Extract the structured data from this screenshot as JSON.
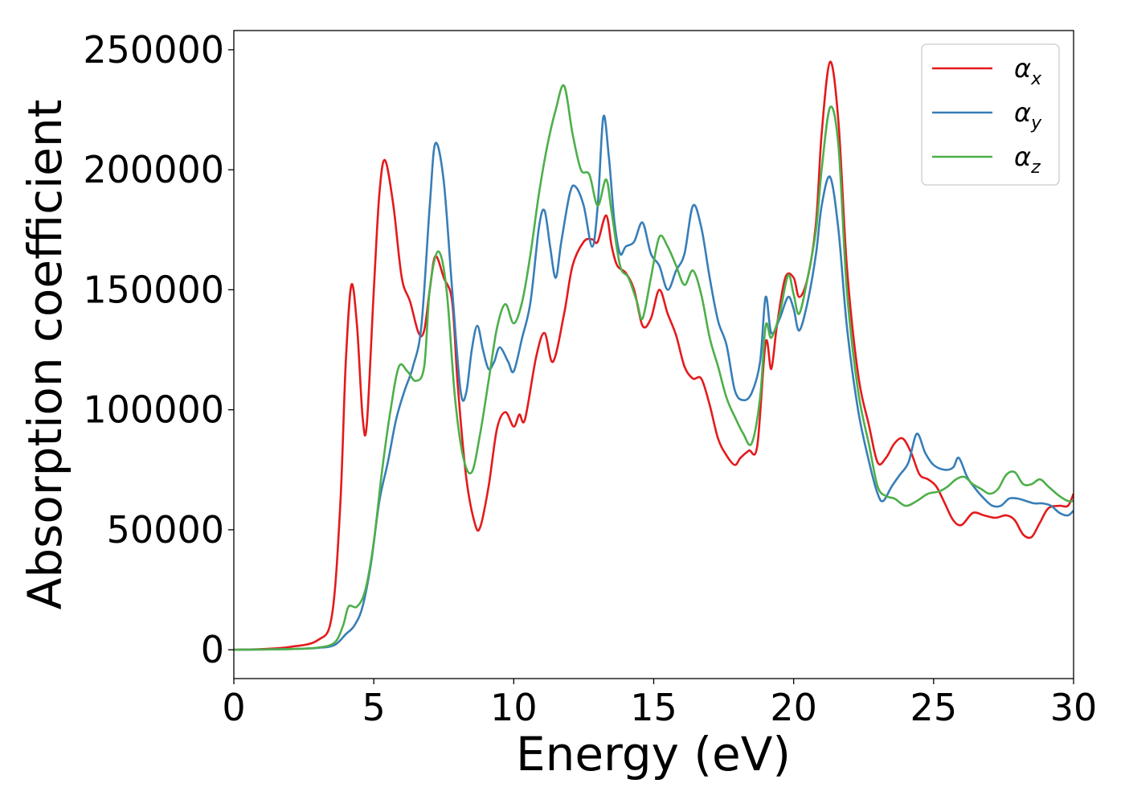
{
  "chart_data": {
    "type": "line",
    "title": "",
    "xlabel": "Energy (eV)",
    "ylabel": "Absorption coefficient",
    "xlim": [
      0,
      30
    ],
    "ylim": [
      -12000,
      258000
    ],
    "xticks": [
      0,
      5,
      10,
      15,
      20,
      25,
      30
    ],
    "xtick_labels": [
      "0",
      "5",
      "10",
      "15",
      "20",
      "25",
      "30"
    ],
    "yticks": [
      0,
      50000,
      100000,
      150000,
      200000,
      250000
    ],
    "ytick_labels": [
      "0",
      "50000",
      "100000",
      "150000",
      "200000",
      "250000"
    ],
    "grid": false,
    "legend_position": "top-right",
    "series": [
      {
        "name": "α",
        "subscript": "x",
        "color": "#e41a1c",
        "points": [
          [
            0,
            0
          ],
          [
            1,
            300
          ],
          [
            2,
            1200
          ],
          [
            3,
            4000
          ],
          [
            3.5,
            14000
          ],
          [
            3.8,
            60000
          ],
          [
            4.0,
            120000
          ],
          [
            4.2,
            152000
          ],
          [
            4.4,
            135000
          ],
          [
            4.6,
            97000
          ],
          [
            4.75,
            94000
          ],
          [
            5.0,
            150000
          ],
          [
            5.2,
            190000
          ],
          [
            5.4,
            204000
          ],
          [
            5.7,
            185000
          ],
          [
            6.0,
            155000
          ],
          [
            6.3,
            145000
          ],
          [
            6.6,
            132000
          ],
          [
            6.8,
            133000
          ],
          [
            7.0,
            150000
          ],
          [
            7.2,
            164000
          ],
          [
            7.5,
            155000
          ],
          [
            7.8,
            145000
          ],
          [
            8.0,
            110000
          ],
          [
            8.3,
            72000
          ],
          [
            8.6,
            53000
          ],
          [
            8.8,
            51000
          ],
          [
            9.1,
            68000
          ],
          [
            9.4,
            92000
          ],
          [
            9.7,
            99000
          ],
          [
            10.0,
            93000
          ],
          [
            10.2,
            98000
          ],
          [
            10.4,
            96000
          ],
          [
            10.8,
            122000
          ],
          [
            11.1,
            132000
          ],
          [
            11.4,
            120000
          ],
          [
            11.8,
            140000
          ],
          [
            12.1,
            160000
          ],
          [
            12.5,
            170000
          ],
          [
            12.8,
            171000
          ],
          [
            13.0,
            170000
          ],
          [
            13.3,
            181000
          ],
          [
            13.5,
            168000
          ],
          [
            13.7,
            160000
          ],
          [
            14.0,
            157000
          ],
          [
            14.3,
            150000
          ],
          [
            14.6,
            135000
          ],
          [
            14.9,
            138000
          ],
          [
            15.2,
            150000
          ],
          [
            15.5,
            140000
          ],
          [
            15.8,
            131000
          ],
          [
            16.1,
            118000
          ],
          [
            16.4,
            113000
          ],
          [
            16.7,
            113000
          ],
          [
            17.0,
            102000
          ],
          [
            17.3,
            88000
          ],
          [
            17.6,
            81000
          ],
          [
            17.9,
            77000
          ],
          [
            18.1,
            80000
          ],
          [
            18.4,
            83000
          ],
          [
            18.7,
            85000
          ],
          [
            19.0,
            128000
          ],
          [
            19.2,
            117000
          ],
          [
            19.4,
            135000
          ],
          [
            19.7,
            155000
          ],
          [
            20.0,
            155000
          ],
          [
            20.2,
            147000
          ],
          [
            20.5,
            155000
          ],
          [
            20.8,
            178000
          ],
          [
            21.0,
            215000
          ],
          [
            21.3,
            245000
          ],
          [
            21.6,
            220000
          ],
          [
            21.9,
            160000
          ],
          [
            22.3,
            115000
          ],
          [
            22.7,
            93000
          ],
          [
            23.0,
            78000
          ],
          [
            23.3,
            80000
          ],
          [
            23.6,
            86000
          ],
          [
            23.9,
            88000
          ],
          [
            24.2,
            82000
          ],
          [
            24.5,
            73000
          ],
          [
            24.8,
            71000
          ],
          [
            25.1,
            68000
          ],
          [
            25.4,
            61000
          ],
          [
            25.7,
            54000
          ],
          [
            26.0,
            52000
          ],
          [
            26.4,
            57000
          ],
          [
            26.8,
            56000
          ],
          [
            27.2,
            55000
          ],
          [
            27.6,
            56000
          ],
          [
            27.9,
            54000
          ],
          [
            28.2,
            48000
          ],
          [
            28.5,
            47000
          ],
          [
            28.8,
            53000
          ],
          [
            29.1,
            59000
          ],
          [
            29.5,
            60000
          ],
          [
            29.8,
            60000
          ],
          [
            30,
            65000
          ]
        ]
      },
      {
        "name": "α",
        "subscript": "y",
        "color": "#377eb8",
        "points": [
          [
            0,
            0
          ],
          [
            2,
            300
          ],
          [
            3,
            800
          ],
          [
            3.6,
            2000
          ],
          [
            4.0,
            6500
          ],
          [
            4.3,
            10000
          ],
          [
            4.6,
            18000
          ],
          [
            4.9,
            36000
          ],
          [
            5.2,
            62000
          ],
          [
            5.5,
            78000
          ],
          [
            5.8,
            96000
          ],
          [
            6.1,
            108000
          ],
          [
            6.4,
            118000
          ],
          [
            6.7,
            135000
          ],
          [
            7.0,
            185000
          ],
          [
            7.2,
            211000
          ],
          [
            7.5,
            195000
          ],
          [
            7.8,
            150000
          ],
          [
            8.1,
            108000
          ],
          [
            8.3,
            107000
          ],
          [
            8.5,
            125000
          ],
          [
            8.7,
            135000
          ],
          [
            8.9,
            125000
          ],
          [
            9.1,
            117000
          ],
          [
            9.3,
            120000
          ],
          [
            9.5,
            126000
          ],
          [
            9.8,
            120000
          ],
          [
            10.0,
            116000
          ],
          [
            10.3,
            130000
          ],
          [
            10.6,
            145000
          ],
          [
            10.9,
            176000
          ],
          [
            11.1,
            183000
          ],
          [
            11.3,
            168000
          ],
          [
            11.5,
            155000
          ],
          [
            11.7,
            170000
          ],
          [
            12.0,
            190000
          ],
          [
            12.2,
            193000
          ],
          [
            12.5,
            185000
          ],
          [
            12.8,
            168000
          ],
          [
            13.0,
            185000
          ],
          [
            13.2,
            222000
          ],
          [
            13.4,
            205000
          ],
          [
            13.6,
            178000
          ],
          [
            13.8,
            165000
          ],
          [
            14.0,
            168000
          ],
          [
            14.3,
            170000
          ],
          [
            14.6,
            178000
          ],
          [
            14.9,
            165000
          ],
          [
            15.2,
            160000
          ],
          [
            15.5,
            150000
          ],
          [
            15.8,
            158000
          ],
          [
            16.1,
            165000
          ],
          [
            16.4,
            185000
          ],
          [
            16.7,
            176000
          ],
          [
            17.0,
            155000
          ],
          [
            17.3,
            137000
          ],
          [
            17.6,
            127000
          ],
          [
            17.9,
            108000
          ],
          [
            18.2,
            104000
          ],
          [
            18.5,
            107000
          ],
          [
            18.8,
            120000
          ],
          [
            19.0,
            147000
          ],
          [
            19.2,
            132000
          ],
          [
            19.5,
            138000
          ],
          [
            19.8,
            147000
          ],
          [
            20.0,
            142000
          ],
          [
            20.2,
            133000
          ],
          [
            20.5,
            145000
          ],
          [
            20.8,
            165000
          ],
          [
            21.0,
            185000
          ],
          [
            21.3,
            197000
          ],
          [
            21.6,
            175000
          ],
          [
            21.9,
            135000
          ],
          [
            22.3,
            100000
          ],
          [
            22.7,
            78000
          ],
          [
            23.0,
            65000
          ],
          [
            23.2,
            62000
          ],
          [
            23.5,
            68000
          ],
          [
            23.8,
            73000
          ],
          [
            24.1,
            78000
          ],
          [
            24.4,
            90000
          ],
          [
            24.7,
            82000
          ],
          [
            25.0,
            77000
          ],
          [
            25.4,
            75000
          ],
          [
            25.7,
            76000
          ],
          [
            25.9,
            80000
          ],
          [
            26.2,
            72000
          ],
          [
            26.5,
            67000
          ],
          [
            26.8,
            63000
          ],
          [
            27.1,
            60000
          ],
          [
            27.4,
            60000
          ],
          [
            27.7,
            63000
          ],
          [
            28.0,
            63000
          ],
          [
            28.3,
            62000
          ],
          [
            28.6,
            61000
          ],
          [
            28.9,
            61000
          ],
          [
            29.2,
            60000
          ],
          [
            29.5,
            57000
          ],
          [
            29.8,
            56000
          ],
          [
            30,
            58000
          ]
        ]
      },
      {
        "name": "α",
        "subscript": "z",
        "color": "#4daf4a",
        "points": [
          [
            0,
            0
          ],
          [
            2,
            300
          ],
          [
            3,
            900
          ],
          [
            3.6,
            3000
          ],
          [
            3.9,
            10000
          ],
          [
            4.1,
            18000
          ],
          [
            4.4,
            18000
          ],
          [
            4.7,
            25000
          ],
          [
            5.0,
            45000
          ],
          [
            5.3,
            75000
          ],
          [
            5.6,
            100000
          ],
          [
            5.9,
            118000
          ],
          [
            6.2,
            116000
          ],
          [
            6.5,
            112000
          ],
          [
            6.8,
            118000
          ],
          [
            7.0,
            150000
          ],
          [
            7.3,
            166000
          ],
          [
            7.6,
            150000
          ],
          [
            7.9,
            105000
          ],
          [
            8.2,
            80000
          ],
          [
            8.5,
            74000
          ],
          [
            8.8,
            90000
          ],
          [
            9.1,
            112000
          ],
          [
            9.4,
            134000
          ],
          [
            9.7,
            144000
          ],
          [
            10.0,
            136000
          ],
          [
            10.3,
            145000
          ],
          [
            10.6,
            165000
          ],
          [
            10.9,
            190000
          ],
          [
            11.2,
            210000
          ],
          [
            11.5,
            225000
          ],
          [
            11.8,
            235000
          ],
          [
            12.1,
            215000
          ],
          [
            12.4,
            200000
          ],
          [
            12.7,
            198000
          ],
          [
            13.0,
            185000
          ],
          [
            13.3,
            196000
          ],
          [
            13.5,
            182000
          ],
          [
            13.8,
            160000
          ],
          [
            14.1,
            155000
          ],
          [
            14.4,
            145000
          ],
          [
            14.6,
            138000
          ],
          [
            14.9,
            155000
          ],
          [
            15.2,
            172000
          ],
          [
            15.5,
            168000
          ],
          [
            15.8,
            160000
          ],
          [
            16.1,
            152000
          ],
          [
            16.4,
            158000
          ],
          [
            16.7,
            148000
          ],
          [
            17.0,
            130000
          ],
          [
            17.3,
            118000
          ],
          [
            17.6,
            105000
          ],
          [
            17.9,
            97000
          ],
          [
            18.2,
            90000
          ],
          [
            18.5,
            86000
          ],
          [
            18.8,
            105000
          ],
          [
            19.0,
            135000
          ],
          [
            19.2,
            130000
          ],
          [
            19.5,
            140000
          ],
          [
            19.8,
            156000
          ],
          [
            20.0,
            148000
          ],
          [
            20.2,
            140000
          ],
          [
            20.5,
            155000
          ],
          [
            20.8,
            175000
          ],
          [
            21.0,
            200000
          ],
          [
            21.3,
            226000
          ],
          [
            21.6,
            210000
          ],
          [
            21.9,
            150000
          ],
          [
            22.3,
            108000
          ],
          [
            22.7,
            85000
          ],
          [
            23.0,
            68000
          ],
          [
            23.3,
            64000
          ],
          [
            23.6,
            63000
          ],
          [
            24.0,
            60000
          ],
          [
            24.4,
            62000
          ],
          [
            24.8,
            65000
          ],
          [
            25.2,
            66000
          ],
          [
            25.5,
            68000
          ],
          [
            25.8,
            71000
          ],
          [
            26.1,
            72000
          ],
          [
            26.4,
            69000
          ],
          [
            26.7,
            67000
          ],
          [
            27.0,
            65000
          ],
          [
            27.3,
            67000
          ],
          [
            27.6,
            73000
          ],
          [
            27.9,
            74000
          ],
          [
            28.2,
            69000
          ],
          [
            28.5,
            69000
          ],
          [
            28.8,
            71000
          ],
          [
            29.1,
            68000
          ],
          [
            29.5,
            64000
          ],
          [
            29.8,
            62000
          ],
          [
            30,
            62000
          ]
        ]
      }
    ]
  }
}
